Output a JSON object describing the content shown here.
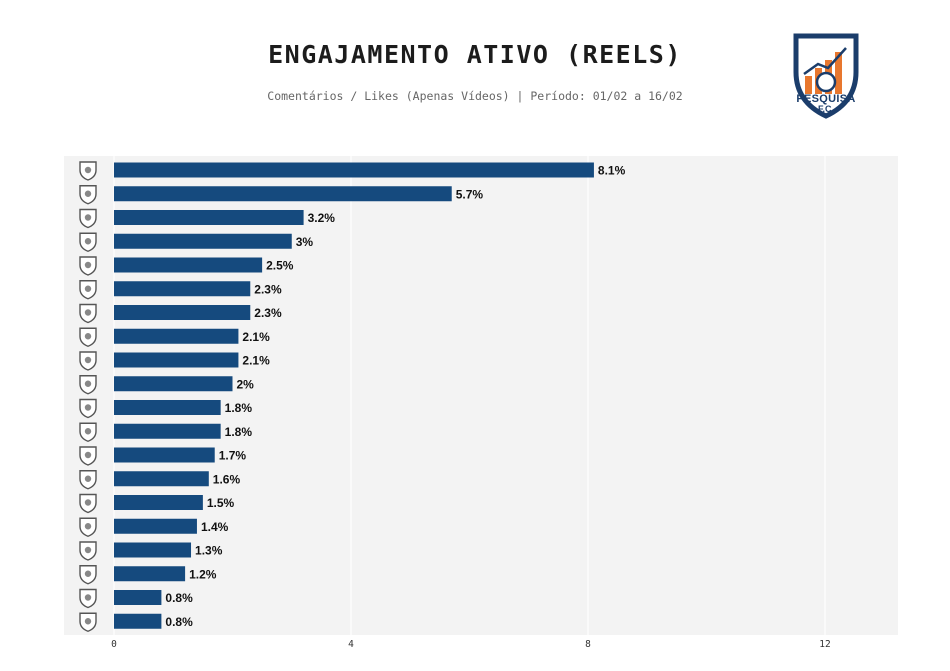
{
  "header": {
    "title": "ENGAJAMENTO ATIVO (REELS)",
    "subtitle": "Comentários / Likes (Apenas Vídeos) | Período: 01/02 a 16/02"
  },
  "logo": {
    "line1": "PESQUISA",
    "line2": "F.C.",
    "colors": {
      "shield": "#1b3d6b",
      "accent": "#e8772e"
    }
  },
  "colors": {
    "bar": "#154a7e",
    "panel": "#f3f3f3",
    "grid": "#ffffff"
  },
  "chart_data": {
    "type": "bar",
    "orientation": "horizontal",
    "title": "ENGAJAMENTO ATIVO (REELS)",
    "subtitle": "Comentários / Likes (Apenas Vídeos) | Período: 01/02 a 16/02",
    "xlabel": "",
    "ylabel": "",
    "xlim": [
      0,
      13.2
    ],
    "xticks": [
      0,
      4,
      8,
      12
    ],
    "grid": true,
    "legend": "none",
    "category_icons": [
      "red-bull-bragantino-crest-icon",
      "botafogo-crest-icon",
      "vitoria-crest-icon",
      "remo-crest-icon",
      "vasco-crest-icon",
      "bahia-crest-icon",
      "coritiba-crest-icon",
      "fluminense-crest-icon",
      "atletico-mineiro-crest-icon",
      "chapecoense-crest-icon",
      "mirassol-crest-icon",
      "cruzeiro-crest-icon",
      "santos-crest-icon",
      "palmeiras-crest-icon",
      "gremio-crest-icon",
      "athletico-paranaense-crest-icon",
      "sao-paulo-crest-icon",
      "internacional-crest-icon",
      "flamengo-crest-icon",
      "corinthians-crest-icon"
    ],
    "values": [
      8.1,
      5.7,
      3.2,
      3,
      2.5,
      2.3,
      2.3,
      2.1,
      2.1,
      2,
      1.8,
      1.8,
      1.7,
      1.6,
      1.5,
      1.4,
      1.3,
      1.2,
      0.8,
      0.8
    ],
    "value_labels": [
      "8.1%",
      "5.7%",
      "3.2%",
      "3%",
      "2.5%",
      "2.3%",
      "2.3%",
      "2.1%",
      "2.1%",
      "2%",
      "1.8%",
      "1.8%",
      "1.7%",
      "1.6%",
      "1.5%",
      "1.4%",
      "1.3%",
      "1.2%",
      "0.8%",
      "0.8%"
    ]
  }
}
